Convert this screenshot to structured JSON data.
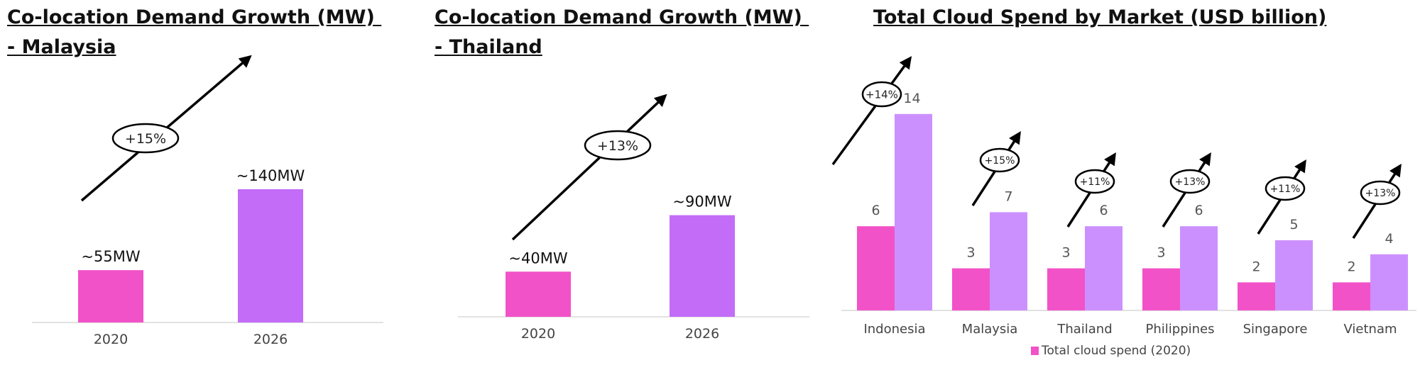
{
  "colors": {
    "pink": "#F252C8",
    "purple": "#C26CF8",
    "light_purple": "#CC90FE",
    "axis": "#D8D8D8"
  },
  "chart_data": [
    {
      "type": "bar",
      "title": "Co-location Demand Growth (MW) - Malaysia",
      "title_lines": [
        "Co-location Demand Growth (MW) ",
        "- Malaysia"
      ],
      "categories": [
        "2020",
        "2026"
      ],
      "values": [
        55,
        140
      ],
      "data_labels": [
        "~55MW",
        "~140MW"
      ],
      "growth_label": "+15%",
      "bar_colors": [
        "#F252C8",
        "#C26CF8"
      ]
    },
    {
      "type": "bar",
      "title": "Co-location Demand Growth (MW) - Thailand",
      "title_lines": [
        "Co-location Demand Growth (MW) ",
        "- Thailand"
      ],
      "categories": [
        "2020",
        "2026"
      ],
      "values": [
        40,
        90
      ],
      "data_labels": [
        "~40MW",
        "~90MW"
      ],
      "growth_label": "+13%",
      "bar_colors": [
        "#F252C8",
        "#C26CF8"
      ]
    },
    {
      "type": "bar",
      "title": "Total Cloud Spend by Market (USD billion)",
      "categories": [
        "Indonesia",
        "Malaysia",
        "Thailand",
        "Philippines",
        "Singapore",
        "Vietnam"
      ],
      "series": [
        {
          "name": "Total cloud spend (2020)",
          "values": [
            6,
            3,
            3,
            3,
            2,
            2
          ],
          "color": "#F252C8"
        },
        {
          "values": [
            14,
            7,
            6,
            6,
            5,
            4
          ],
          "color": "#CC90FE"
        }
      ],
      "growth_labels": [
        "+14%",
        "+15%",
        "+11%",
        "+13%",
        "+11%",
        "+13%"
      ],
      "legend": {
        "position": "bottom",
        "entries": [
          "Total cloud spend (2020)"
        ]
      }
    }
  ]
}
